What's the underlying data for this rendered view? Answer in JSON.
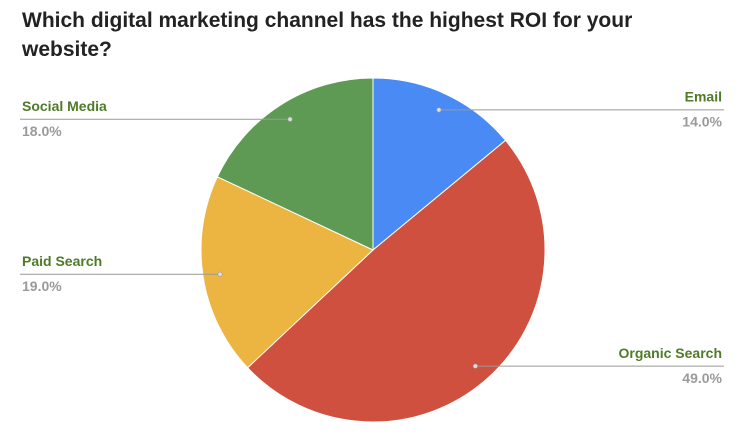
{
  "chart_data": {
    "type": "pie",
    "title": "Which digital marketing channel has the highest ROI for your website?",
    "categories": [
      "Email",
      "Organic Search",
      "Paid Search",
      "Social Media"
    ],
    "values": [
      14,
      49,
      19,
      18
    ],
    "value_labels": [
      "14.0%",
      "49.0%",
      "19.0%",
      "18.0%"
    ],
    "colors": [
      "#4a8af4",
      "#d0503f",
      "#ecb440",
      "#5f9a55"
    ]
  }
}
